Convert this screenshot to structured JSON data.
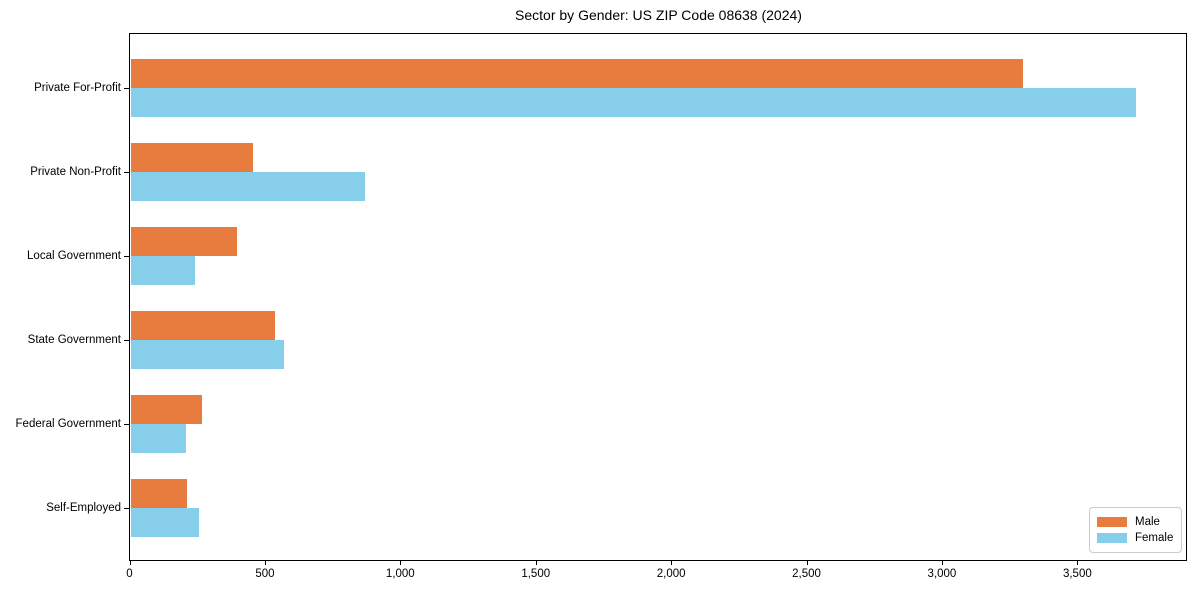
{
  "chart_data": {
    "type": "bar",
    "orientation": "horizontal",
    "title": "Sector by Gender: US ZIP Code 08638 (2024)",
    "xlabel": "",
    "ylabel": "",
    "categories": [
      "Private For-Profit",
      "Private Non-Profit",
      "Local Government",
      "State Government",
      "Federal Government",
      "Self-Employed"
    ],
    "series": [
      {
        "name": "Male",
        "color": "#e87b3e",
        "values": [
          3300,
          455,
          397,
          537,
          268,
          213
        ]
      },
      {
        "name": "Female",
        "color": "#87ceeb",
        "values": [
          3718,
          870,
          241,
          572,
          210,
          257
        ]
      }
    ],
    "xlim": [
      0,
      3903
    ],
    "xticks": [
      0,
      500,
      1000,
      1500,
      2000,
      2500,
      3000,
      3500
    ],
    "xtick_labels": [
      "0",
      "500",
      "1,000",
      "1,500",
      "2,000",
      "2,500",
      "3,000",
      "3,500"
    ],
    "grid": false,
    "legend_position": "lower right"
  },
  "legend": {
    "items": [
      {
        "label": "Male",
        "color": "#e87b3e"
      },
      {
        "label": "Female",
        "color": "#87ceeb"
      }
    ]
  }
}
